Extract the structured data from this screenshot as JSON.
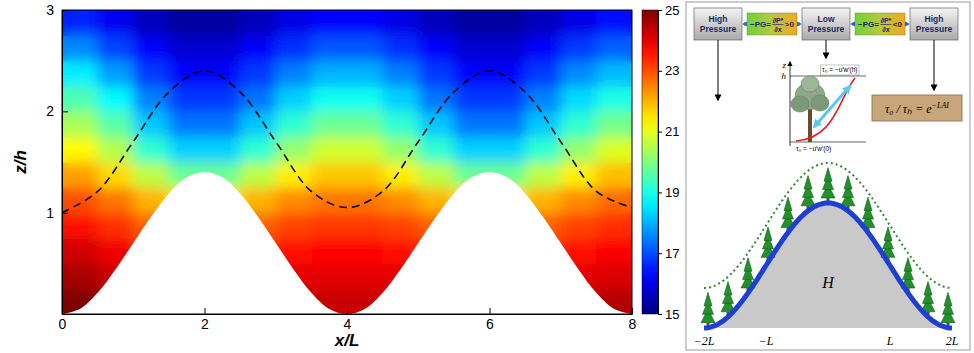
{
  "chart_data": {
    "type": "heatmap",
    "x_label": "x/L",
    "y_label": "z/h",
    "xlim": [
      0,
      8
    ],
    "xticks": [
      0,
      2,
      4,
      6,
      8
    ],
    "ylim": [
      0,
      3
    ],
    "yticks": [
      1,
      2,
      3
    ],
    "cells": {
      "x_bins": [
        0,
        0.5,
        1,
        1.5,
        2,
        2.5,
        3,
        3.5,
        4,
        4.5,
        5,
        5.5,
        6,
        6.5,
        7,
        7.5,
        8
      ],
      "y_bins": [
        0,
        0.25,
        0.5,
        0.75,
        1,
        1.25,
        1.5,
        1.75,
        2,
        2.25,
        2.5,
        2.75,
        3
      ],
      "values": [
        [
          25,
          24.7,
          24.2,
          24,
          24,
          24.2,
          24.4,
          24.3,
          24.3,
          24.4,
          24.2,
          24,
          24,
          24.2,
          24.4,
          24.5
        ],
        [
          24.6,
          24.3,
          23.8,
          23.5,
          23.5,
          23.8,
          24,
          24,
          24,
          24,
          23.8,
          23.5,
          23.5,
          23.8,
          24,
          24.1
        ],
        [
          24.2,
          23.9,
          23.4,
          23,
          23,
          23.3,
          23.6,
          23.7,
          23.7,
          23.6,
          23.3,
          23,
          23,
          23.3,
          23.6,
          23.8
        ],
        [
          23.6,
          23.3,
          22.8,
          22.4,
          22.4,
          22.8,
          23.1,
          23.2,
          23.2,
          23.1,
          22.8,
          22.4,
          22.4,
          22.8,
          23.1,
          23.3
        ],
        [
          23,
          22.6,
          22,
          21.5,
          21.5,
          22,
          22.4,
          22.6,
          22.6,
          22.4,
          22,
          21.5,
          21.5,
          22,
          22.4,
          22.7
        ],
        [
          22.2,
          21.6,
          20.6,
          19.8,
          19.8,
          20.6,
          21.4,
          21.8,
          21.8,
          21.4,
          20.6,
          19.8,
          19.8,
          20.6,
          21.4,
          21.9
        ],
        [
          21.3,
          20.5,
          19.2,
          18.3,
          18.3,
          19.2,
          20.2,
          20.8,
          20.8,
          20.2,
          19.2,
          18.3,
          18.3,
          19.2,
          20.2,
          20.9
        ],
        [
          20.4,
          19.6,
          18.2,
          17.4,
          17.4,
          18.2,
          19.2,
          19.8,
          19.8,
          19.2,
          18.2,
          17.4,
          17.4,
          18.2,
          19.2,
          19.9
        ],
        [
          19.5,
          18.7,
          17.5,
          16.8,
          16.8,
          17.4,
          18.3,
          18.9,
          18.9,
          18.3,
          17.4,
          16.8,
          16.8,
          17.5,
          18.4,
          19
        ],
        [
          18.6,
          17.8,
          16.8,
          16.3,
          16.3,
          16.8,
          17.5,
          18,
          18,
          17.5,
          16.8,
          16.3,
          16.3,
          16.8,
          17.6,
          18.1
        ],
        [
          17.6,
          16.9,
          16.2,
          15.8,
          15.8,
          16.2,
          16.7,
          17.1,
          17.1,
          16.7,
          16.2,
          15.8,
          15.8,
          16.2,
          16.8,
          17.2
        ],
        [
          16.6,
          16.1,
          15.6,
          15.3,
          15.3,
          15.6,
          16,
          16.3,
          16.3,
          16,
          15.6,
          15.3,
          15.3,
          15.6,
          16,
          16.4
        ]
      ]
    },
    "colorbar": {
      "range": [
        15,
        25
      ],
      "ticks": [
        15,
        17,
        19,
        21,
        23,
        25
      ]
    },
    "series": [
      {
        "type": "area",
        "color": "#ffffff",
        "x": [
          0,
          0.25,
          0.5,
          0.75,
          1,
          1.25,
          1.5,
          1.75,
          2,
          2.25,
          2.5,
          2.75,
          3,
          3.25,
          3.5,
          3.75,
          4,
          4.25,
          4.5,
          4.75,
          5,
          5.25,
          5.5,
          5.75,
          6,
          6.25,
          6.5,
          6.75,
          7,
          7.25,
          7.5,
          7.75,
          8
        ],
        "values": [
          0,
          0.05,
          0.21,
          0.44,
          0.7,
          0.96,
          1.19,
          1.35,
          1.4,
          1.35,
          1.19,
          0.96,
          0.7,
          0.44,
          0.21,
          0.05,
          0,
          0.05,
          0.21,
          0.44,
          0.7,
          0.96,
          1.19,
          1.35,
          1.4,
          1.35,
          1.19,
          0.96,
          0.7,
          0.44,
          0.21,
          0.05,
          0
        ]
      },
      {
        "type": "line",
        "color": "#000000",
        "line_style": "dashed",
        "x": [
          0,
          0.5,
          1,
          1.5,
          2,
          2.5,
          3,
          3.5,
          4,
          4.5,
          5,
          5.5,
          6,
          6.5,
          7,
          7.5,
          8
        ],
        "values": [
          1,
          1.21,
          1.7,
          2.19,
          2.4,
          2.19,
          1.7,
          1.21,
          1.05,
          1.21,
          1.7,
          2.19,
          2.4,
          2.19,
          1.7,
          1.21,
          1.05
        ]
      }
    ]
  },
  "diagram": {
    "pressure_boxes": [
      "High Pressure",
      "Low Pressure",
      "High Pressure"
    ],
    "gradient_labels": [
      {
        "lhs": "−PG=",
        "numerator": "∂P*",
        "denominator": "∂x",
        "relation": ">0"
      },
      {
        "lhs": "−PG=",
        "numerator": "∂P*",
        "denominator": "∂x",
        "relation": "<0"
      }
    ],
    "inset": {
      "axis_label": "z",
      "height_label": "h",
      "top_stress": "τₕ = −u′w′(h)",
      "bottom_stress": "τ₀ = −u′w′(0)"
    },
    "formula": {
      "base": "τ₀ / τₕ = e",
      "exponent": "−LAI"
    },
    "hill_label": "H",
    "x_labels": [
      "−2L",
      "−L",
      "L",
      "2L"
    ]
  }
}
